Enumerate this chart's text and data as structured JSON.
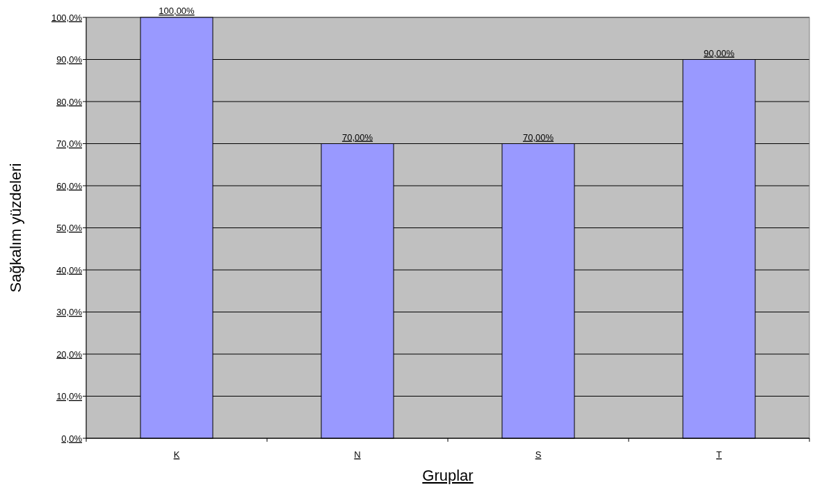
{
  "chart_data": {
    "type": "bar",
    "xlabel": "Gruplar",
    "ylabel": "Sağkalım yüzdeleri",
    "categories": [
      "K",
      "N",
      "S",
      "T"
    ],
    "values": [
      100,
      70,
      70,
      90
    ],
    "value_labels": [
      "100,00%",
      "70,00%",
      "70,00%",
      "90,00%"
    ],
    "color": "#9999ff",
    "ylim": [
      0,
      100
    ],
    "yticks": [
      {
        "value": 0,
        "label": "0,0%"
      },
      {
        "value": 10,
        "label": "10,0%"
      },
      {
        "value": 20,
        "label": "20,0%"
      },
      {
        "value": 30,
        "label": "30,0%"
      },
      {
        "value": 40,
        "label": "40,0%"
      },
      {
        "value": 50,
        "label": "50,0%"
      },
      {
        "value": 60,
        "label": "60,0%"
      },
      {
        "value": 70,
        "label": "70,0%"
      },
      {
        "value": 80,
        "label": "80,0%"
      },
      {
        "value": 90,
        "label": "90,0%"
      },
      {
        "value": 100,
        "label": "100,0%"
      }
    ],
    "grid": "y"
  }
}
